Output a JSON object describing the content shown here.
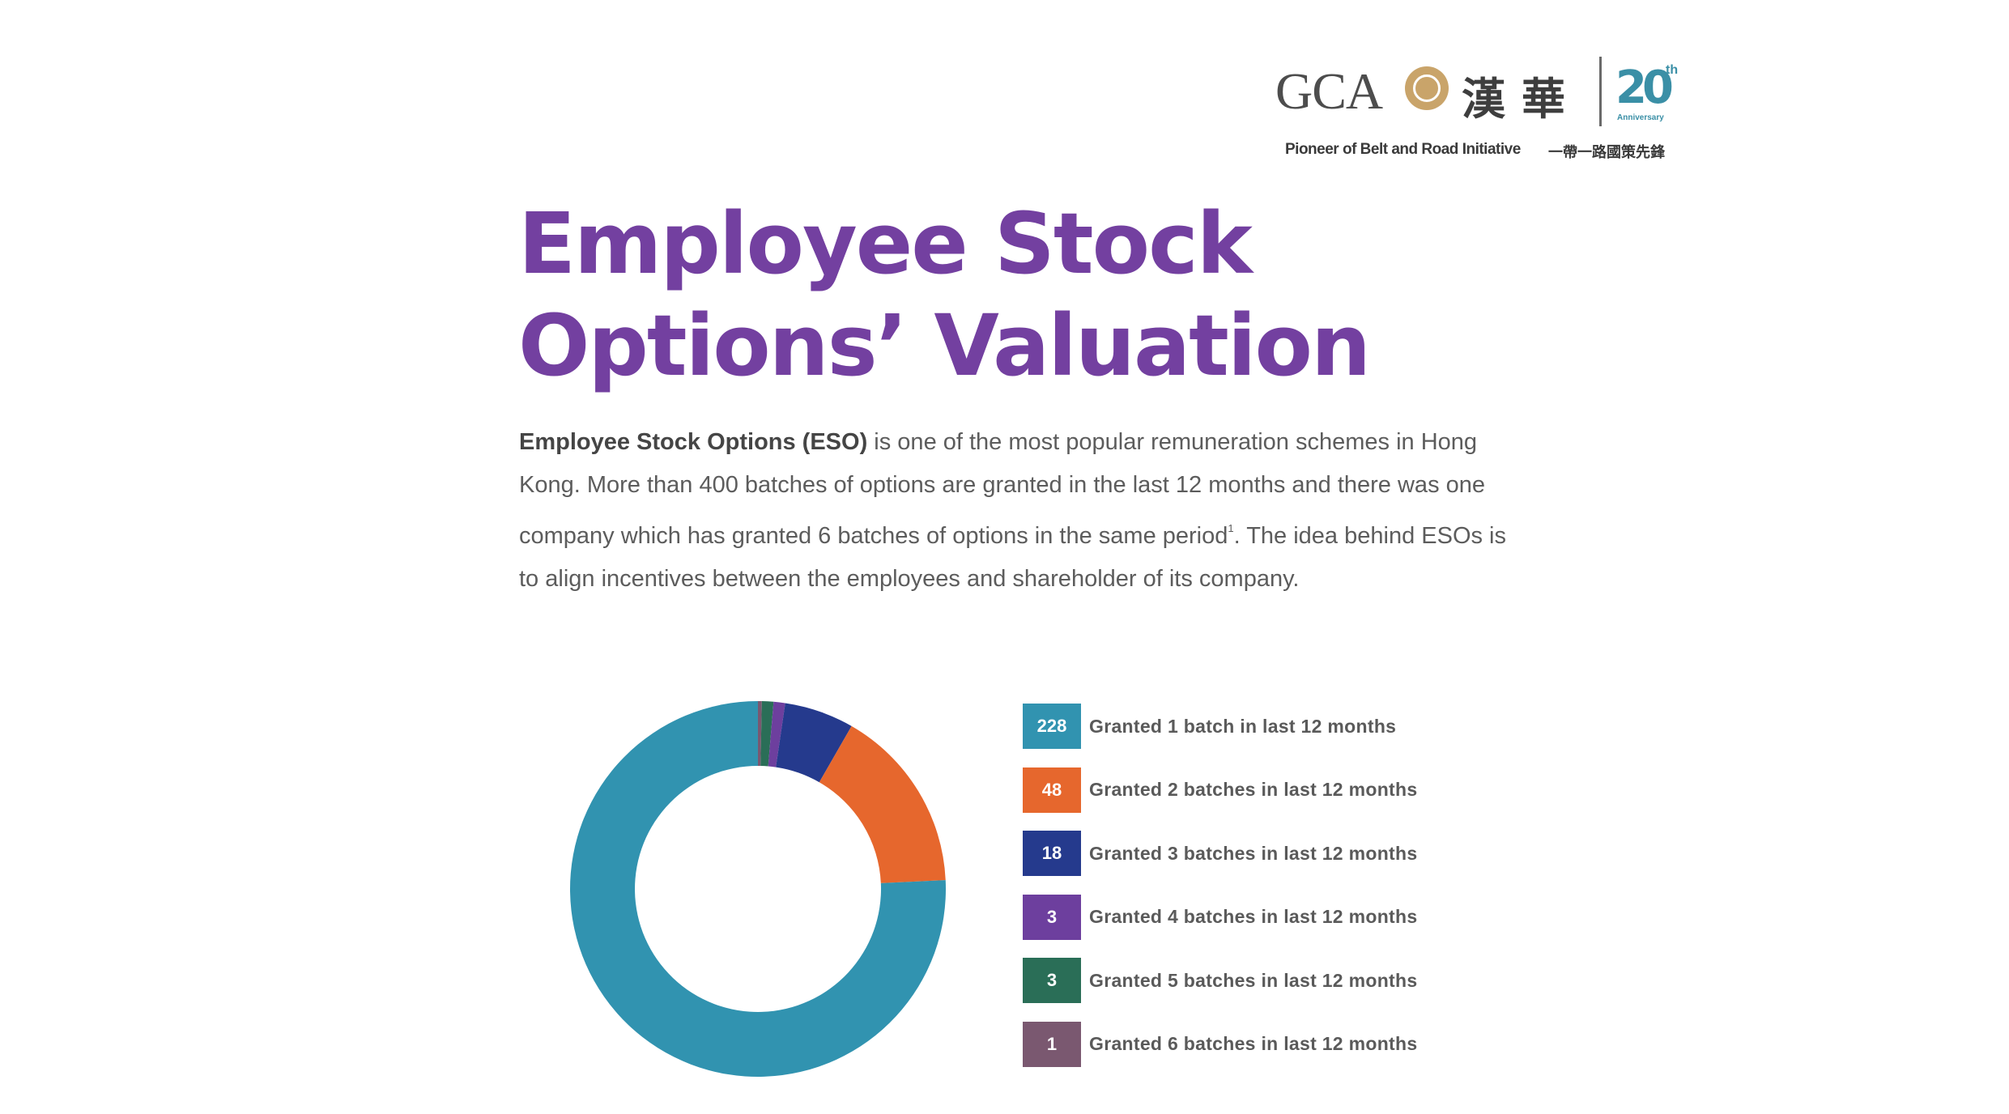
{
  "logo": {
    "brand": "GCA",
    "chinese_name": "漢華",
    "anniversary_number": "20",
    "anniversary_suffix": "th",
    "anniversary_text": "Anniversary",
    "tagline_en": "Pioneer of Belt and Road Initiative",
    "tagline_cn": "一帶一路國策先鋒"
  },
  "heading": {
    "line1": "Employee Stock",
    "line2": "Options’ Valuation"
  },
  "intro": {
    "lead_bold": "Employee Stock Options (ESO)",
    "text_part1": " is one of the most popular remuneration schemes in Hong Kong. More than 400 batches of options are granted in the last 12 months and there was one company which has granted 6 batches of options in the same period",
    "footnote_mark": "1",
    "text_part2": ". The idea behind ESOs is to align incentives between the employees and shareholder of its company."
  },
  "colors": {
    "title": "#7340a0",
    "teal": "#3193b0",
    "orange": "#e6672d",
    "navy": "#253a8d",
    "purple": "#6d3f9e",
    "green": "#2a6e57",
    "mauve": "#7a5870"
  },
  "chart_data": {
    "type": "pie",
    "donut": true,
    "categories": [
      "Granted 1 batch in last 12 months",
      "Granted 2 batches in last 12 months",
      "Granted 3 batches in last 12 months",
      "Granted 4 batches in last 12 months",
      "Granted 5 batches in last 12 months",
      "Granted 6 batches in last 12 months"
    ],
    "values": [
      228,
      48,
      18,
      3,
      3,
      1
    ],
    "colors": [
      "#3193b0",
      "#e6672d",
      "#253a8d",
      "#6d3f9e",
      "#2a6e57",
      "#7a5870"
    ],
    "legend_placement": "right",
    "draw_order": [
      5,
      4,
      3,
      2,
      1,
      0
    ]
  }
}
